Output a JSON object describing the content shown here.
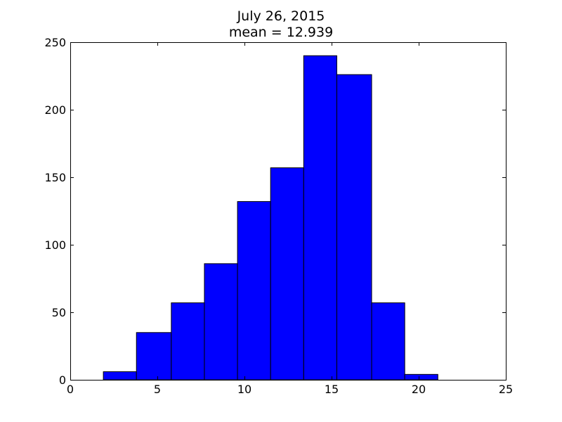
{
  "chart_data": {
    "type": "bar",
    "title": "July 26, 2015",
    "subtitle": "mean = 12.939",
    "xlabel": "",
    "ylabel": "",
    "xlim": [
      0,
      25
    ],
    "ylim": [
      0,
      250
    ],
    "xticks": [
      0,
      5,
      10,
      15,
      20,
      25
    ],
    "yticks": [
      0,
      50,
      100,
      150,
      200,
      250
    ],
    "grid": false,
    "bar_color": "#0000ff",
    "edge_color": "#000000",
    "bins": [
      {
        "x0": 1.9,
        "x1": 3.8,
        "count": 6
      },
      {
        "x0": 3.8,
        "x1": 5.8,
        "count": 35
      },
      {
        "x0": 5.8,
        "x1": 7.7,
        "count": 57
      },
      {
        "x0": 7.7,
        "x1": 9.6,
        "count": 86
      },
      {
        "x0": 9.6,
        "x1": 11.5,
        "count": 132
      },
      {
        "x0": 11.5,
        "x1": 13.4,
        "count": 157
      },
      {
        "x0": 13.4,
        "x1": 15.3,
        "count": 240
      },
      {
        "x0": 15.3,
        "x1": 17.3,
        "count": 226
      },
      {
        "x0": 17.3,
        "x1": 19.2,
        "count": 57
      },
      {
        "x0": 19.2,
        "x1": 21.1,
        "count": 4
      }
    ]
  }
}
